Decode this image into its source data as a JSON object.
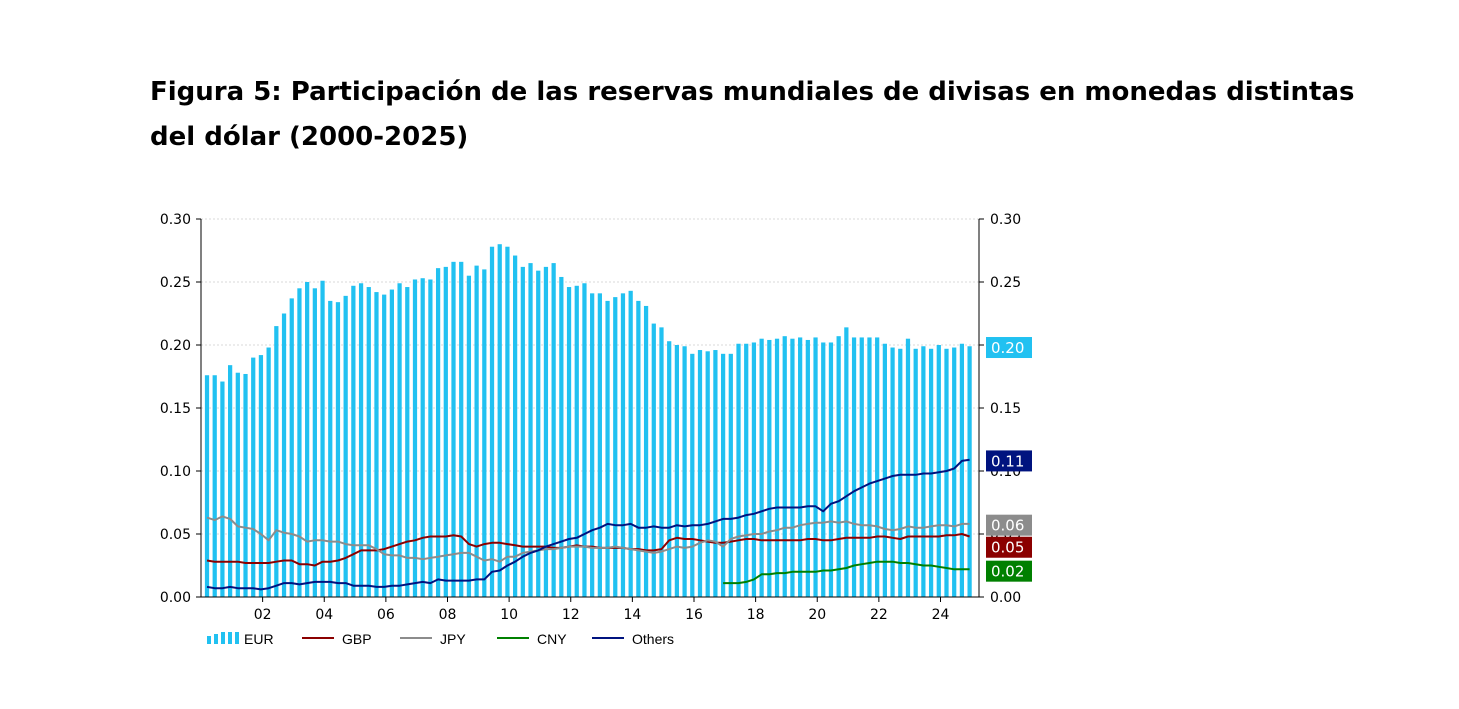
{
  "title": "Figura 5: Participación de las reservas mundiales de divisas en monedas distintas del dólar (2000-2025)",
  "chart_data": {
    "type": "bar",
    "x_start": 2000.25,
    "x_step": 0.25,
    "xlim": [
      2000.0,
      2025.25
    ],
    "x_ticks": [
      {
        "x": 2002,
        "label": "02"
      },
      {
        "x": 2004,
        "label": "04"
      },
      {
        "x": 2006,
        "label": "06"
      },
      {
        "x": 2008,
        "label": "08"
      },
      {
        "x": 2010,
        "label": "10"
      },
      {
        "x": 2012,
        "label": "12"
      },
      {
        "x": 2014,
        "label": "14"
      },
      {
        "x": 2016,
        "label": "16"
      },
      {
        "x": 2018,
        "label": "18"
      },
      {
        "x": 2020,
        "label": "20"
      },
      {
        "x": 2022,
        "label": "22"
      },
      {
        "x": 2024,
        "label": "24"
      }
    ],
    "ylim": [
      0,
      0.3
    ],
    "y_ticks": [
      "0.00",
      "0.05",
      "0.10",
      "0.15",
      "0.20",
      "0.25",
      "0.30"
    ],
    "grid": true,
    "legend_position": "bottom-left",
    "series": [
      {
        "name": "EUR",
        "type": "bar",
        "color": "#21C1F1",
        "values": [
          0.176,
          0.176,
          0.171,
          0.184,
          0.178,
          0.177,
          0.19,
          0.192,
          0.198,
          0.215,
          0.225,
          0.237,
          0.245,
          0.25,
          0.245,
          0.251,
          0.235,
          0.234,
          0.239,
          0.247,
          0.249,
          0.246,
          0.242,
          0.24,
          0.244,
          0.249,
          0.246,
          0.252,
          0.253,
          0.252,
          0.261,
          0.262,
          0.266,
          0.266,
          0.255,
          0.263,
          0.26,
          0.278,
          0.28,
          0.278,
          0.271,
          0.262,
          0.265,
          0.259,
          0.262,
          0.265,
          0.254,
          0.246,
          0.247,
          0.249,
          0.241,
          0.241,
          0.235,
          0.238,
          0.241,
          0.243,
          0.235,
          0.231,
          0.217,
          0.214,
          0.203,
          0.2,
          0.199,
          0.193,
          0.196,
          0.195,
          0.196,
          0.193,
          0.193,
          0.201,
          0.201,
          0.202,
          0.205,
          0.204,
          0.205,
          0.207,
          0.205,
          0.206,
          0.204,
          0.206,
          0.202,
          0.202,
          0.207,
          0.214,
          0.206,
          0.206,
          0.206,
          0.206,
          0.201,
          0.198,
          0.197,
          0.205,
          0.197,
          0.199,
          0.197,
          0.2,
          0.197,
          0.198,
          0.201,
          0.199
        ]
      },
      {
        "name": "GBP",
        "type": "line",
        "color": "#8B0000",
        "last_label": "0.05",
        "values": [
          0.029,
          0.028,
          0.028,
          0.028,
          0.028,
          0.027,
          0.027,
          0.027,
          0.027,
          0.028,
          0.029,
          0.029,
          0.026,
          0.026,
          0.025,
          0.028,
          0.028,
          0.029,
          0.031,
          0.034,
          0.037,
          0.037,
          0.037,
          0.038,
          0.04,
          0.042,
          0.044,
          0.045,
          0.047,
          0.048,
          0.048,
          0.048,
          0.049,
          0.048,
          0.042,
          0.04,
          0.042,
          0.043,
          0.043,
          0.042,
          0.041,
          0.04,
          0.04,
          0.04,
          0.04,
          0.039,
          0.039,
          0.04,
          0.041,
          0.04,
          0.04,
          0.039,
          0.039,
          0.039,
          0.039,
          0.038,
          0.038,
          0.037,
          0.037,
          0.038,
          0.045,
          0.047,
          0.046,
          0.046,
          0.045,
          0.044,
          0.043,
          0.043,
          0.044,
          0.045,
          0.046,
          0.046,
          0.045,
          0.045,
          0.045,
          0.045,
          0.045,
          0.045,
          0.046,
          0.046,
          0.045,
          0.045,
          0.046,
          0.047,
          0.047,
          0.047,
          0.047,
          0.048,
          0.048,
          0.047,
          0.046,
          0.048,
          0.048,
          0.048,
          0.048,
          0.048,
          0.049,
          0.049,
          0.05,
          0.048
        ]
      },
      {
        "name": "JPY",
        "type": "line",
        "color": "#8C8C8C",
        "last_label": "0.06",
        "values": [
          0.063,
          0.061,
          0.064,
          0.062,
          0.056,
          0.055,
          0.054,
          0.05,
          0.045,
          0.053,
          0.051,
          0.05,
          0.048,
          0.044,
          0.045,
          0.045,
          0.044,
          0.044,
          0.042,
          0.041,
          0.041,
          0.041,
          0.038,
          0.034,
          0.033,
          0.033,
          0.031,
          0.031,
          0.03,
          0.031,
          0.032,
          0.033,
          0.034,
          0.035,
          0.035,
          0.032,
          0.029,
          0.03,
          0.028,
          0.032,
          0.032,
          0.035,
          0.036,
          0.037,
          0.038,
          0.038,
          0.039,
          0.04,
          0.04,
          0.04,
          0.039,
          0.039,
          0.039,
          0.04,
          0.039,
          0.038,
          0.037,
          0.036,
          0.035,
          0.036,
          0.038,
          0.04,
          0.039,
          0.04,
          0.043,
          0.045,
          0.044,
          0.04,
          0.046,
          0.048,
          0.049,
          0.05,
          0.05,
          0.052,
          0.053,
          0.055,
          0.055,
          0.057,
          0.058,
          0.059,
          0.059,
          0.06,
          0.059,
          0.06,
          0.058,
          0.057,
          0.057,
          0.056,
          0.054,
          0.053,
          0.054,
          0.056,
          0.055,
          0.055,
          0.056,
          0.057,
          0.057,
          0.056,
          0.058,
          0.058
        ]
      },
      {
        "name": "CNY",
        "type": "line",
        "color": "#008000",
        "last_label": "0.02",
        "values": [
          null,
          null,
          null,
          null,
          null,
          null,
          null,
          null,
          null,
          null,
          null,
          null,
          null,
          null,
          null,
          null,
          null,
          null,
          null,
          null,
          null,
          null,
          null,
          null,
          null,
          null,
          null,
          null,
          null,
          null,
          null,
          null,
          null,
          null,
          null,
          null,
          null,
          null,
          null,
          null,
          null,
          null,
          null,
          null,
          null,
          null,
          null,
          null,
          null,
          null,
          null,
          null,
          null,
          null,
          null,
          null,
          null,
          null,
          null,
          null,
          null,
          null,
          null,
          null,
          null,
          null,
          null,
          0.011,
          0.011,
          0.011,
          0.012,
          0.014,
          0.018,
          0.018,
          0.019,
          0.019,
          0.02,
          0.02,
          0.02,
          0.02,
          0.021,
          0.021,
          0.022,
          0.023,
          0.025,
          0.026,
          0.027,
          0.028,
          0.028,
          0.028,
          0.027,
          0.027,
          0.026,
          0.025,
          0.025,
          0.024,
          0.023,
          0.022,
          0.022,
          0.022
        ]
      },
      {
        "name": "Others",
        "type": "line",
        "color": "#00137F",
        "last_label": "0.11",
        "values": [
          0.008,
          0.007,
          0.007,
          0.008,
          0.007,
          0.007,
          0.007,
          0.006,
          0.007,
          0.009,
          0.011,
          0.011,
          0.01,
          0.011,
          0.012,
          0.012,
          0.012,
          0.011,
          0.011,
          0.009,
          0.009,
          0.009,
          0.008,
          0.008,
          0.009,
          0.009,
          0.01,
          0.011,
          0.012,
          0.011,
          0.014,
          0.013,
          0.013,
          0.013,
          0.013,
          0.014,
          0.014,
          0.02,
          0.021,
          0.025,
          0.028,
          0.032,
          0.035,
          0.037,
          0.04,
          0.042,
          0.044,
          0.046,
          0.047,
          0.05,
          0.053,
          0.055,
          0.058,
          0.057,
          0.057,
          0.058,
          0.055,
          0.055,
          0.056,
          0.055,
          0.055,
          0.057,
          0.056,
          0.057,
          0.057,
          0.058,
          0.06,
          0.062,
          0.062,
          0.063,
          0.065,
          0.066,
          0.068,
          0.07,
          0.071,
          0.071,
          0.071,
          0.071,
          0.072,
          0.072,
          0.068,
          0.074,
          0.076,
          0.08,
          0.084,
          0.087,
          0.09,
          0.092,
          0.094,
          0.096,
          0.097,
          0.097,
          0.097,
          0.098,
          0.098,
          0.099,
          0.1,
          0.102,
          0.108,
          0.109
        ]
      }
    ],
    "value_labels": [
      {
        "text": "0.20",
        "y": 0.198,
        "color": "#21C1F1"
      }
    ]
  }
}
